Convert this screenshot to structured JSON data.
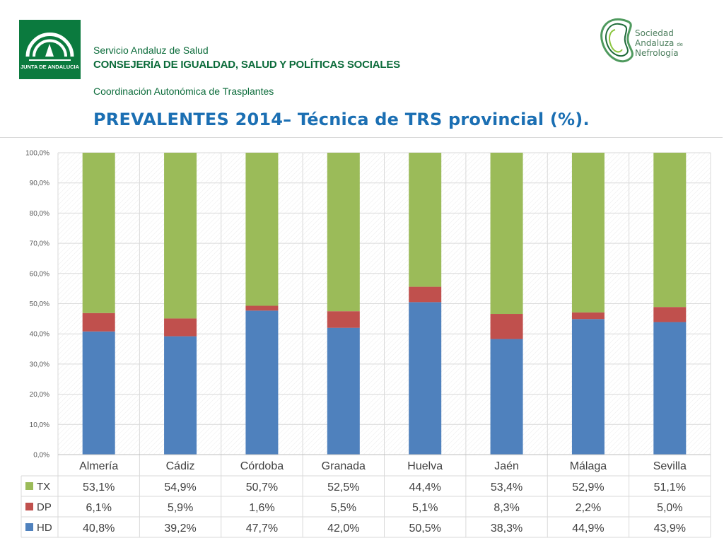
{
  "header": {
    "logo_left_label": "JUNTA DE ANDALUCIA",
    "line1": "Servicio Andaluz de Salud",
    "line2": "CONSEJERÍA DE IGUALDAD, SALUD Y POLÍTICAS SOCIALES",
    "line3": "Coordinación Autonómica de Trasplantes",
    "logo_right": {
      "line1": "Sociedad",
      "line2": "Andaluza",
      "line2_small": "de",
      "line3": "Nefrología"
    }
  },
  "title": "PREVALENTES 2014– Técnica de TRS provincial (%).",
  "colors": {
    "TX": "#9bbb59",
    "DP": "#c0504d",
    "HD": "#4f81bd",
    "brand_green": "#0b7a3e",
    "title_blue": "#1b6fb3"
  },
  "chart_data": {
    "type": "bar",
    "stacked": true,
    "categories": [
      "Almería",
      "Cádiz",
      "Córdoba",
      "Granada",
      "Huelva",
      "Jaén",
      "Málaga",
      "Sevilla"
    ],
    "series": [
      {
        "name": "HD",
        "values": [
          40.8,
          39.2,
          47.7,
          42.0,
          50.5,
          38.3,
          44.9,
          43.9
        ],
        "labels": [
          "40,8%",
          "39,2%",
          "47,7%",
          "42,0%",
          "50,5%",
          "38,3%",
          "44,9%",
          "43,9%"
        ]
      },
      {
        "name": "DP",
        "values": [
          6.1,
          5.9,
          1.6,
          5.5,
          5.1,
          8.3,
          2.2,
          5.0
        ],
        "labels": [
          "6,1%",
          "5,9%",
          "1,6%",
          "5,5%",
          "5,1%",
          "8,3%",
          "2,2%",
          "5,0%"
        ]
      },
      {
        "name": "TX",
        "values": [
          53.1,
          54.9,
          50.7,
          52.5,
          44.4,
          53.4,
          52.9,
          51.1
        ],
        "labels": [
          "53,1%",
          "54,9%",
          "50,7%",
          "52,5%",
          "44,4%",
          "53,4%",
          "52,9%",
          "51,1%"
        ]
      }
    ],
    "table_order": [
      "TX",
      "DP",
      "HD"
    ],
    "ylim": [
      0,
      100
    ],
    "yticks": [
      "0,0%",
      "10,0%",
      "20,0%",
      "30,0%",
      "40,0%",
      "50,0%",
      "60,0%",
      "70,0%",
      "80,0%",
      "90,0%",
      "100,0%"
    ],
    "grid": true,
    "data_table": true
  }
}
